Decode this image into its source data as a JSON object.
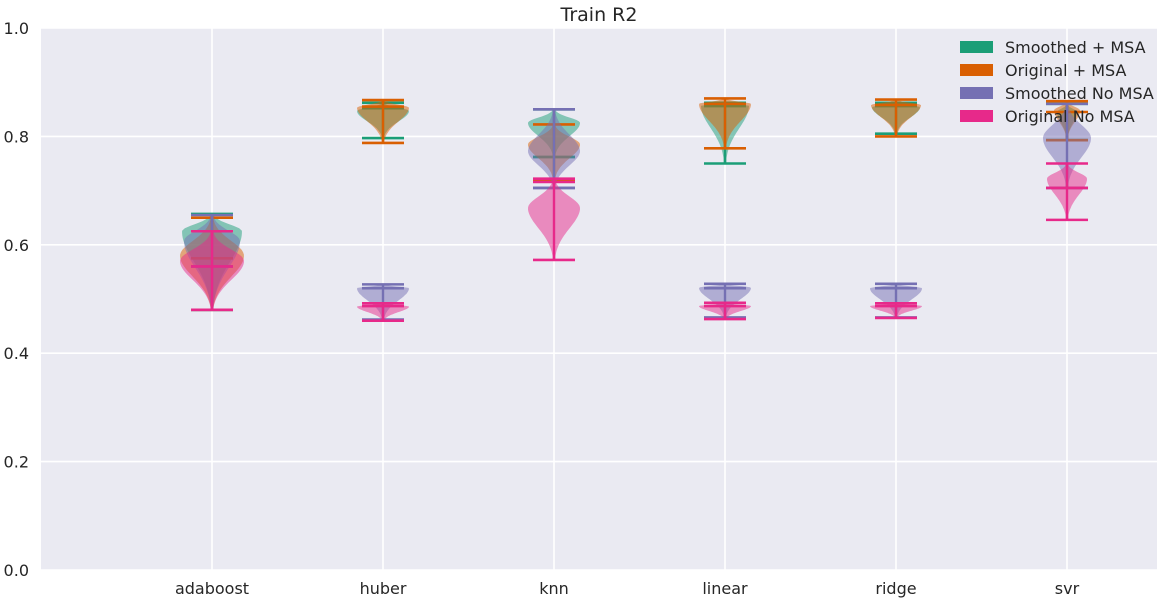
{
  "chart_data": {
    "type": "violin",
    "title": "Train R2",
    "xlabel": "",
    "ylabel": "",
    "categories": [
      "adaboost",
      "huber",
      "knn",
      "linear",
      "ridge",
      "svr"
    ],
    "ylim": [
      0.0,
      1.0
    ],
    "yticks": [
      "0.0",
      "0.2",
      "0.4",
      "0.6",
      "0.8",
      "1.0"
    ],
    "grid": true,
    "legend_position": "top-right",
    "series": [
      {
        "name": "Smoothed + MSA",
        "color": "#1b9e77",
        "violins": [
          {
            "min": 0.48,
            "median": 0.56,
            "max": 0.657,
            "mode": 0.625,
            "halfwidth": 0.3
          },
          {
            "min": 0.797,
            "median": 0.852,
            "max": 0.862,
            "mode": 0.847,
            "halfwidth": 0.26
          },
          {
            "min": 0.762,
            "median": 0.762,
            "max": 0.85,
            "mode": 0.825,
            "halfwidth": 0.26
          },
          {
            "min": 0.75,
            "median": 0.856,
            "max": 0.862,
            "mode": 0.857,
            "halfwidth": 0.24
          },
          {
            "min": 0.805,
            "median": 0.856,
            "max": 0.862,
            "mode": 0.854,
            "halfwidth": 0.24
          },
          {
            "min": 0.793,
            "median": 0.793,
            "max": 0.86,
            "mode": 0.845,
            "halfwidth": 0.1
          }
        ]
      },
      {
        "name": "Original + MSA",
        "color": "#d95f02",
        "violins": [
          {
            "min": 0.48,
            "median": 0.575,
            "max": 0.65,
            "mode": 0.58,
            "halfwidth": 0.32
          },
          {
            "min": 0.788,
            "median": 0.855,
            "max": 0.867,
            "mode": 0.853,
            "halfwidth": 0.26
          },
          {
            "min": 0.72,
            "median": 0.72,
            "max": 0.822,
            "mode": 0.785,
            "halfwidth": 0.26
          },
          {
            "min": 0.778,
            "median": 0.86,
            "max": 0.87,
            "mode": 0.86,
            "halfwidth": 0.26
          },
          {
            "min": 0.8,
            "median": 0.858,
            "max": 0.868,
            "mode": 0.858,
            "halfwidth": 0.25
          },
          {
            "min": 0.793,
            "median": 0.845,
            "max": 0.865,
            "mode": 0.848,
            "halfwidth": 0.13
          }
        ]
      },
      {
        "name": "Smoothed No MSA",
        "color": "#7570b3",
        "violins": [
          {
            "min": 0.48,
            "median": 0.56,
            "max": 0.655,
            "mode": 0.607,
            "halfwidth": 0.28
          },
          {
            "min": 0.462,
            "median": 0.52,
            "max": 0.527,
            "mode": 0.52,
            "halfwidth": 0.26
          },
          {
            "min": 0.705,
            "median": 0.705,
            "max": 0.85,
            "mode": 0.773,
            "halfwidth": 0.26
          },
          {
            "min": 0.466,
            "median": 0.52,
            "max": 0.528,
            "mode": 0.521,
            "halfwidth": 0.26
          },
          {
            "min": 0.466,
            "median": 0.52,
            "max": 0.528,
            "mode": 0.52,
            "halfwidth": 0.26
          },
          {
            "min": 0.705,
            "median": 0.705,
            "max": 0.86,
            "mode": 0.797,
            "halfwidth": 0.24
          }
        ]
      },
      {
        "name": "Original No MSA",
        "color": "#e7298a",
        "violins": [
          {
            "min": 0.48,
            "median": 0.56,
            "max": 0.625,
            "mode": 0.57,
            "halfwidth": 0.32
          },
          {
            "min": 0.46,
            "median": 0.487,
            "max": 0.492,
            "mode": 0.486,
            "halfwidth": 0.26
          },
          {
            "min": 0.572,
            "median": 0.716,
            "max": 0.722,
            "mode": 0.668,
            "halfwidth": 0.26
          },
          {
            "min": 0.463,
            "median": 0.487,
            "max": 0.493,
            "mode": 0.487,
            "halfwidth": 0.26
          },
          {
            "min": 0.465,
            "median": 0.487,
            "max": 0.492,
            "mode": 0.487,
            "halfwidth": 0.26
          },
          {
            "min": 0.646,
            "median": 0.705,
            "max": 0.75,
            "mode": 0.722,
            "halfwidth": 0.2
          }
        ]
      }
    ]
  },
  "style": {
    "background": "#eaeaf2",
    "grid_color": "#ffffff",
    "text_color": "#262626"
  }
}
